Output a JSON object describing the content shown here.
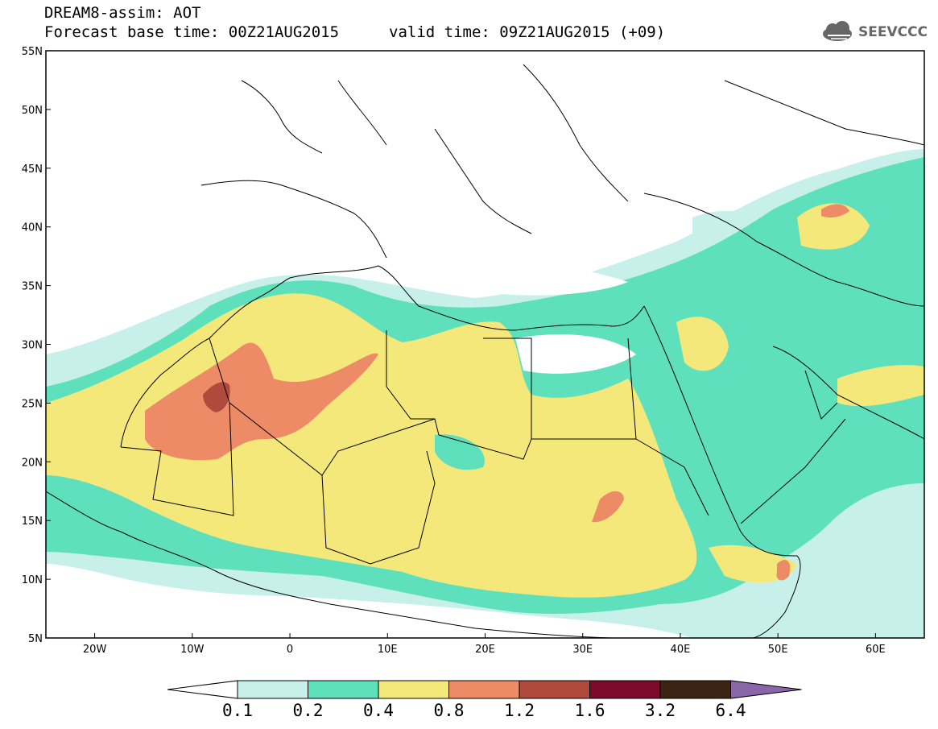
{
  "header": {
    "title": "DREAM8-assim: AOT",
    "base_time": "Forecast base time: 00Z21AUG2015",
    "valid_time": "valid time: 09Z21AUG2015 (+09)",
    "logo_text": "SEEVCCC"
  },
  "map": {
    "lon_range": [
      -25,
      65
    ],
    "lat_range": [
      5,
      55
    ],
    "lat_ticks": [
      "55N",
      "50N",
      "45N",
      "40N",
      "35N",
      "30N",
      "25N",
      "20N",
      "15N",
      "10N",
      "5N"
    ],
    "lon_ticks": [
      "20W",
      "10W",
      "0",
      "10E",
      "20E",
      "30E",
      "40E",
      "50E",
      "60E"
    ],
    "variable": "AOT"
  },
  "colorbar": {
    "levels": [
      "0.1",
      "0.2",
      "0.4",
      "0.8",
      "1.2",
      "1.6",
      "3.2",
      "6.4"
    ],
    "colors": [
      "#c8f0ea",
      "#5fe0bd",
      "#f5e87a",
      "#ec8b66",
      "#b04a3c",
      "#7a0c2a",
      "#3c2414",
      "#8866a8"
    ],
    "under_color": "#ffffff"
  }
}
